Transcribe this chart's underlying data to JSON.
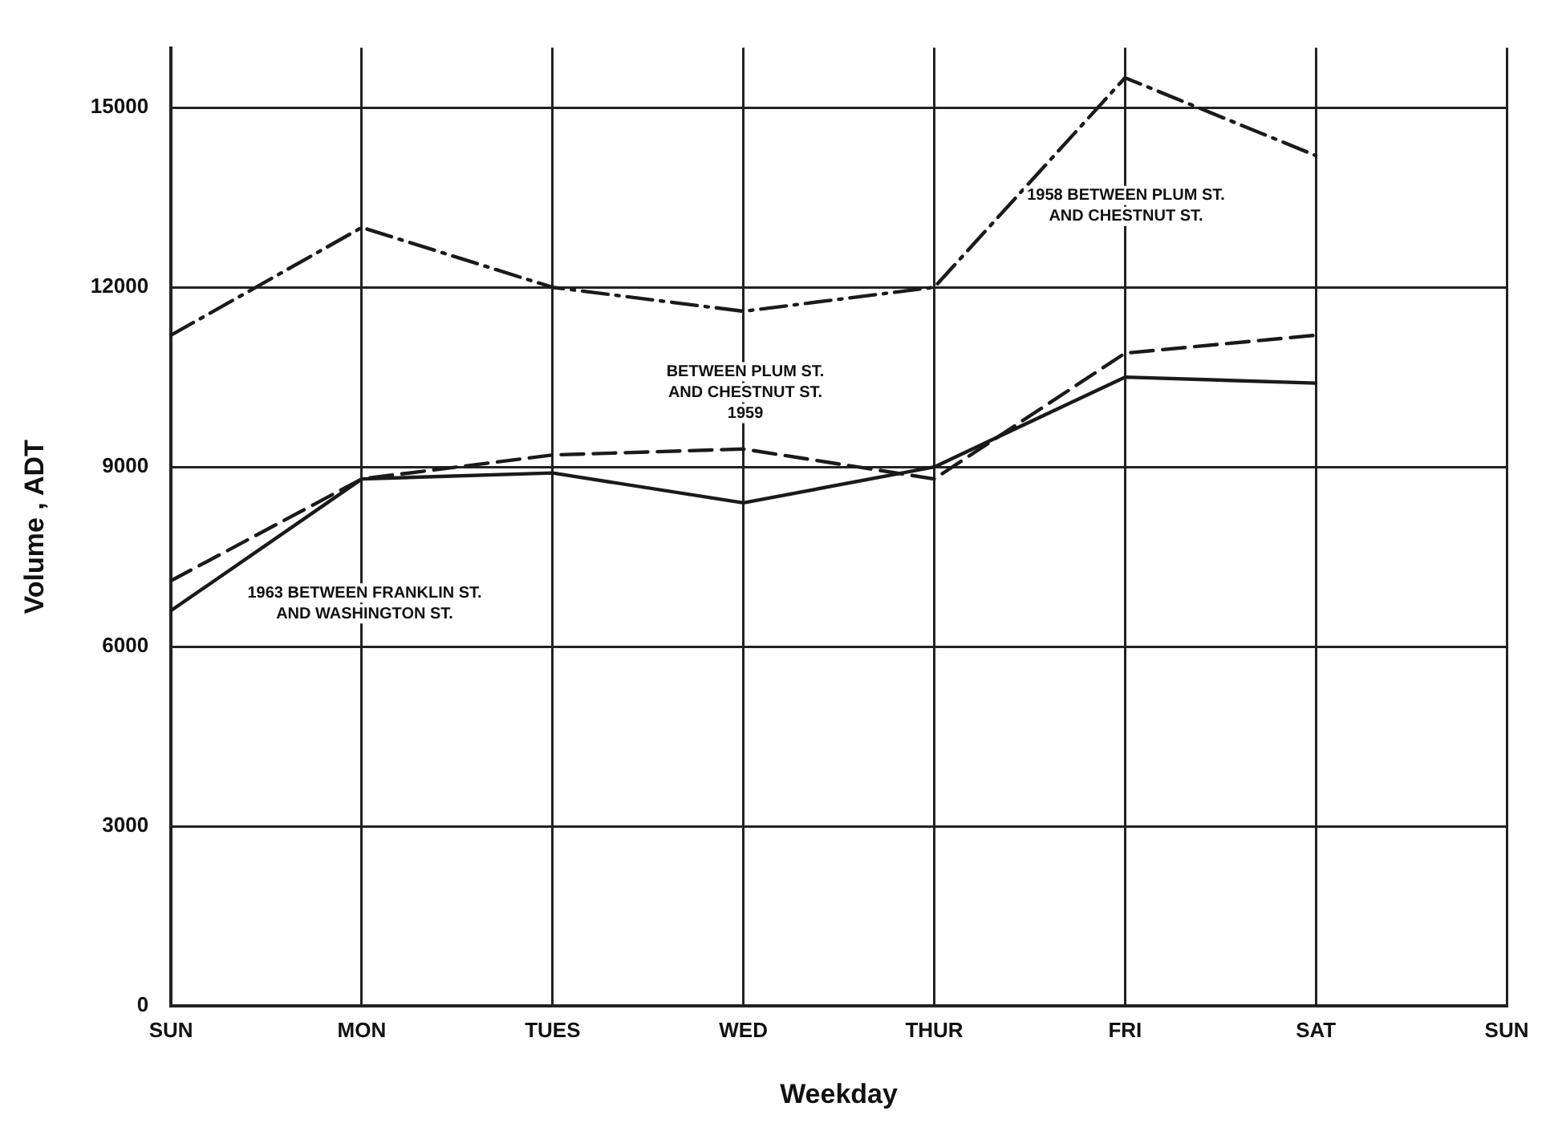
{
  "chart_data": {
    "type": "line",
    "xlabel": "Weekday",
    "ylabel": "Volume , ADT",
    "categories": [
      "SUN",
      "MON",
      "TUES",
      "WED",
      "THUR",
      "FRI",
      "SAT",
      "SUN"
    ],
    "series": [
      {
        "color": "#1a1a1a",
        "line_style": "dotted",
        "values": [
          11200,
          13000,
          12000,
          11600,
          12000,
          15500,
          14200,
          null
        ]
      },
      {
        "color": "#1a1a1a",
        "line_style": "dashed",
        "values": [
          7100,
          8800,
          9200,
          9300,
          8800,
          10900,
          11200,
          null
        ]
      },
      {
        "color": "#1a1a1a",
        "line_style": "solid",
        "values": [
          6600,
          8800,
          8900,
          8400,
          9000,
          10500,
          10400,
          null
        ]
      }
    ],
    "ylim": [
      0,
      16000
    ],
    "yticks": [
      0,
      3000,
      6000,
      9000,
      12000,
      15000
    ],
    "grid": true,
    "legend": false,
    "marker": "none",
    "annotations": [
      "1958 BETWEEN PLUM ST.\nAND CHESTNUT ST.",
      "BETWEEN PLUM ST.\nAND CHESTNUT ST.\n1959",
      "1963 BETWEEN FRANKLIN ST.\nAND WASHINGTON ST."
    ]
  }
}
